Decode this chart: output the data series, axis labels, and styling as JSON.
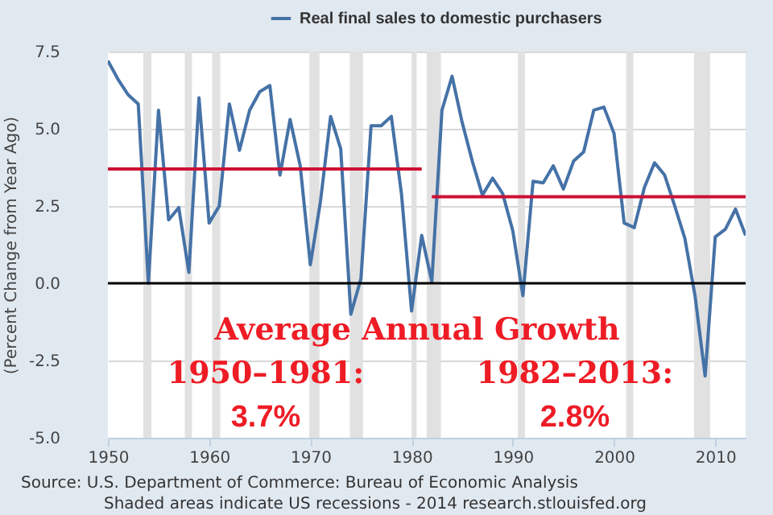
{
  "chart_data": {
    "type": "line",
    "ylabel": "(Percent Change from Year Ago)",
    "x": [
      1950,
      1951,
      1952,
      1953,
      1954,
      1955,
      1956,
      1957,
      1958,
      1959,
      1960,
      1961,
      1962,
      1963,
      1964,
      1965,
      1966,
      1967,
      1968,
      1969,
      1970,
      1971,
      1972,
      1973,
      1974,
      1975,
      1976,
      1977,
      1978,
      1979,
      1980,
      1981,
      1982,
      1983,
      1984,
      1985,
      1986,
      1987,
      1988,
      1989,
      1990,
      1991,
      1992,
      1993,
      1994,
      1995,
      1996,
      1997,
      1998,
      1999,
      2000,
      2001,
      2002,
      2003,
      2004,
      2005,
      2006,
      2007,
      2008,
      2009,
      2010,
      2011,
      2012,
      2013
    ],
    "series": [
      {
        "name": "Real final sales to domestic purchasers",
        "color": "#4572a7",
        "values": [
          7.2,
          6.6,
          6.1,
          5.8,
          0.0,
          5.6,
          2.05,
          2.45,
          0.35,
          6.0,
          1.95,
          2.5,
          5.8,
          4.3,
          5.6,
          6.2,
          6.4,
          3.5,
          5.3,
          3.8,
          0.6,
          2.65,
          5.4,
          4.35,
          -1.0,
          0.15,
          5.1,
          5.1,
          5.4,
          2.9,
          -0.9,
          1.55,
          0.05,
          5.6,
          6.7,
          5.2,
          3.95,
          2.85,
          3.4,
          2.9,
          1.7,
          -0.4,
          3.3,
          3.25,
          3.8,
          3.05,
          3.95,
          4.25,
          5.6,
          5.7,
          4.85,
          1.95,
          1.8,
          3.1,
          3.9,
          3.5,
          2.5,
          1.45,
          -0.4,
          -3.0,
          1.5,
          1.75,
          2.4,
          1.55
        ]
      },
      {
        "type": "line",
        "color": "#cc1133",
        "x": [
          1950,
          1981
        ],
        "values": [
          3.7,
          3.7
        ]
      },
      {
        "type": "line",
        "color": "#cc1133",
        "x": [
          1982,
          2013
        ],
        "values": [
          2.8,
          2.8
        ]
      }
    ],
    "xlim": [
      1950,
      2013
    ],
    "xticks": [
      1950,
      1960,
      1970,
      1980,
      1990,
      2000,
      2010
    ],
    "ylim": [
      -5,
      7.5
    ],
    "yticks": [
      {
        "value": -5,
        "label": "-5.0"
      },
      -2.5,
      {
        "value": 0,
        "label": "0.0"
      },
      2.5,
      {
        "value": 5,
        "label": "5.0"
      },
      7.5
    ],
    "grid": "y",
    "legend": "top",
    "ref_lines": [
      {
        "axis": "y",
        "value": 0,
        "color": "#000000"
      }
    ],
    "bands": [
      {
        "axis": "x",
        "from": 1953.5,
        "to": 1954.3,
        "color": "#e1e1e1"
      },
      {
        "axis": "x",
        "from": 1957.6,
        "to": 1958.3,
        "color": "#e1e1e1"
      },
      {
        "axis": "x",
        "from": 1960.3,
        "to": 1961.1,
        "color": "#e1e1e1"
      },
      {
        "axis": "x",
        "from": 1969.9,
        "to": 1970.9,
        "color": "#e1e1e1"
      },
      {
        "axis": "x",
        "from": 1973.9,
        "to": 1975.2,
        "color": "#e1e1e1"
      },
      {
        "axis": "x",
        "from": 1980.0,
        "to": 1980.5,
        "color": "#e1e1e1"
      },
      {
        "axis": "x",
        "from": 1981.5,
        "to": 1982.9,
        "color": "#e1e1e1"
      },
      {
        "axis": "x",
        "from": 1990.5,
        "to": 1991.2,
        "color": "#e1e1e1"
      },
      {
        "axis": "x",
        "from": 2001.2,
        "to": 2001.9,
        "color": "#e1e1e1"
      },
      {
        "axis": "x",
        "from": 2007.9,
        "to": 2009.5,
        "color": "#e1e1e1"
      }
    ],
    "annotations": [
      "Average Annual Growth",
      "1950–1981:",
      "3.7%",
      "1982–2013:",
      "2.8%",
      "Source: U.S. Department of Commerce: Bureau of Economic Analysis",
      "Shaded areas indicate US recessions - 2014 research.stlouisfed.org"
    ]
  }
}
